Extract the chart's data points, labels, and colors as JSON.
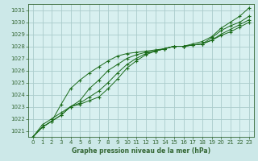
{
  "title": "Graphe pression niveau de la mer (hPa)",
  "background_color": "#cce8e8",
  "plot_bg_color": "#d8f0f0",
  "grid_color": "#aacccc",
  "line_color": "#1a6b1a",
  "marker_color": "#1a6b1a",
  "border_color": "#336633",
  "xlim": [
    -0.5,
    23.5
  ],
  "ylim": [
    1020.5,
    1031.5
  ],
  "yticks": [
    1021,
    1022,
    1023,
    1024,
    1025,
    1026,
    1027,
    1028,
    1029,
    1030,
    1031
  ],
  "xticks": [
    0,
    1,
    2,
    3,
    4,
    5,
    6,
    7,
    8,
    9,
    10,
    11,
    12,
    13,
    14,
    15,
    16,
    17,
    18,
    19,
    20,
    21,
    22,
    23
  ],
  "series": [
    [
      1020.5,
      1021.3,
      1021.8,
      1023.2,
      1024.5,
      1025.2,
      1025.8,
      1026.3,
      1026.8,
      1027.2,
      1027.4,
      1027.5,
      1027.6,
      1027.7,
      1027.8,
      1028.0,
      1028.0,
      1028.2,
      1028.4,
      1028.8,
      1029.5,
      1030.0,
      1030.5,
      1031.2
    ],
    [
      1020.5,
      1021.3,
      1021.8,
      1022.3,
      1023.0,
      1023.5,
      1024.5,
      1025.2,
      1026.0,
      1026.5,
      1027.0,
      1027.3,
      1027.5,
      1027.6,
      1027.8,
      1028.0,
      1028.0,
      1028.1,
      1028.2,
      1028.7,
      1029.3,
      1029.7,
      1030.0,
      1030.5
    ],
    [
      1020.5,
      1021.3,
      1021.8,
      1022.3,
      1023.0,
      1023.3,
      1023.8,
      1024.3,
      1025.0,
      1025.8,
      1026.5,
      1027.0,
      1027.4,
      1027.6,
      1027.8,
      1028.0,
      1028.0,
      1028.1,
      1028.2,
      1028.5,
      1029.0,
      1029.4,
      1029.8,
      1030.2
    ],
    [
      1020.5,
      1021.5,
      1022.0,
      1022.5,
      1023.0,
      1023.2,
      1023.5,
      1023.8,
      1024.5,
      1025.3,
      1026.2,
      1026.8,
      1027.3,
      1027.6,
      1027.8,
      1028.0,
      1028.0,
      1028.1,
      1028.2,
      1028.5,
      1028.9,
      1029.2,
      1029.6,
      1030.0
    ]
  ],
  "tick_fontsize": 5,
  "label_fontsize": 5.5,
  "figsize": [
    3.2,
    2.0
  ],
  "dpi": 100
}
